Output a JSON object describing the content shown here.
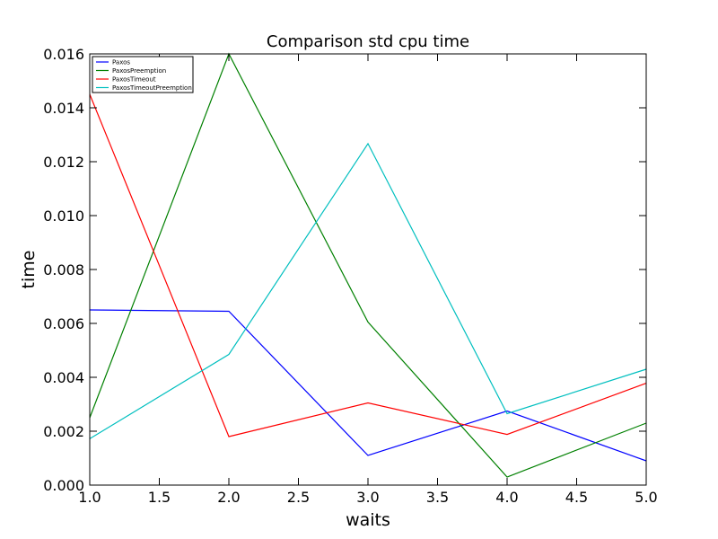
{
  "chart_data": {
    "type": "line",
    "title": "Comparison std cpu time",
    "xlabel": "waits",
    "ylabel": "time",
    "xlim": [
      1.0,
      5.0
    ],
    "ylim": [
      0.0,
      0.016
    ],
    "xticks": [
      1.0,
      1.5,
      2.0,
      2.5,
      3.0,
      3.5,
      4.0,
      4.5,
      5.0
    ],
    "xtick_labels": [
      "1.0",
      "1.5",
      "2.0",
      "2.5",
      "3.0",
      "3.5",
      "4.0",
      "4.5",
      "5.0"
    ],
    "yticks": [
      0.0,
      0.002,
      0.004,
      0.006,
      0.008,
      0.01,
      0.012,
      0.014,
      0.016
    ],
    "ytick_labels": [
      "0.000",
      "0.002",
      "0.004",
      "0.006",
      "0.008",
      "0.010",
      "0.012",
      "0.014",
      "0.016"
    ],
    "grid": false,
    "legend_position": "top-left",
    "x": [
      1,
      2,
      3,
      4,
      5
    ],
    "series": [
      {
        "name": "Paxos",
        "color": "#0000ff",
        "values": [
          0.0065,
          0.00645,
          0.0011,
          0.00275,
          0.0009
        ]
      },
      {
        "name": "PaxosPreemption",
        "color": "#008000",
        "values": [
          0.0025,
          0.016,
          0.00605,
          0.0003,
          0.0023
        ]
      },
      {
        "name": "PaxosTimeout",
        "color": "#ff0000",
        "values": [
          0.0145,
          0.0018,
          0.00305,
          0.00188,
          0.00378
        ]
      },
      {
        "name": "PaxosTimeoutPreemption",
        "color": "#00bfbf",
        "values": [
          0.00172,
          0.00485,
          0.01267,
          0.00265,
          0.0043
        ]
      }
    ]
  }
}
